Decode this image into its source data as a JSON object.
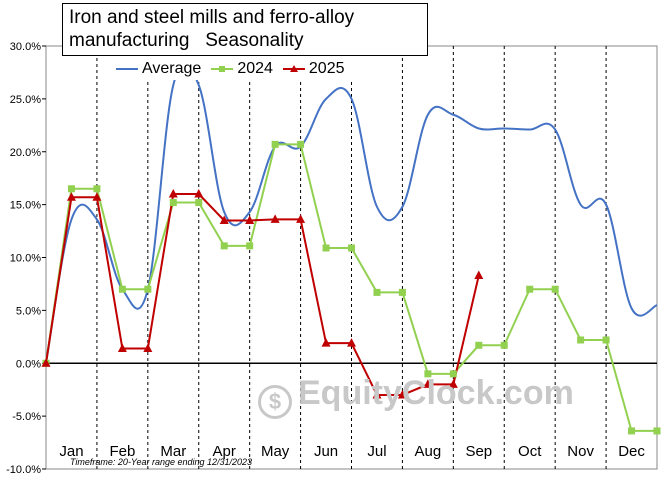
{
  "chart_data": {
    "type": "line",
    "title_line1": "Iron and steel mills and ferro-alloy",
    "title_line2": "manufacturing   Seasonality",
    "categories": [
      "Jan",
      "Feb",
      "Mar",
      "Apr",
      "May",
      "Jun",
      "Jul",
      "Aug",
      "Sep",
      "Oct",
      "Nov",
      "Dec"
    ],
    "yticks": [
      "30.0%",
      "25.0%",
      "20.0%",
      "15.0%",
      "10.0%",
      "5.0%",
      "0.0%",
      "-5.0%",
      "-10.0%"
    ],
    "ylim": [
      -10,
      30
    ],
    "xlim": [
      0,
      12
    ],
    "grid": "dashed vertical month boundaries",
    "legend_position": "top",
    "series": [
      {
        "name": "Average",
        "color": "#4472c4",
        "marker": "none",
        "smooth": true,
        "points": [
          [
            0,
            0
          ],
          [
            0.5,
            13.6
          ],
          [
            1,
            13.6
          ],
          [
            1.5,
            7
          ],
          [
            2,
            7
          ],
          [
            2.5,
            26.3
          ],
          [
            3,
            26.3
          ],
          [
            3.5,
            14.3
          ],
          [
            4,
            14.3
          ],
          [
            4.5,
            20.5
          ],
          [
            5,
            20.5
          ],
          [
            5.5,
            25
          ],
          [
            6,
            25
          ],
          [
            6.5,
            14.8
          ],
          [
            7,
            14.8
          ],
          [
            7.5,
            23.5
          ],
          [
            8,
            23.5
          ],
          [
            8.5,
            22.2
          ],
          [
            9,
            22.2
          ],
          [
            9.5,
            22.1
          ],
          [
            10,
            22.1
          ],
          [
            10.5,
            15
          ],
          [
            11,
            15
          ],
          [
            11.5,
            5.2
          ],
          [
            12,
            5.5
          ]
        ]
      },
      {
        "name": "2024",
        "color": "#92d050",
        "marker": "square",
        "smooth": false,
        "points": [
          [
            0,
            0
          ],
          [
            0.5,
            16.5
          ],
          [
            1,
            16.5
          ],
          [
            1.5,
            7
          ],
          [
            2,
            7
          ],
          [
            2.5,
            15.2
          ],
          [
            3,
            15.2
          ],
          [
            3.5,
            11.1
          ],
          [
            4,
            11.1
          ],
          [
            4.5,
            20.7
          ],
          [
            5,
            20.7
          ],
          [
            5.5,
            10.9
          ],
          [
            6,
            10.9
          ],
          [
            6.5,
            6.7
          ],
          [
            7,
            6.7
          ],
          [
            7.5,
            -1
          ],
          [
            8,
            -1
          ],
          [
            8.5,
            1.7
          ],
          [
            9,
            1.7
          ],
          [
            9.5,
            7
          ],
          [
            10,
            7
          ],
          [
            10.5,
            2.2
          ],
          [
            11,
            2.2
          ],
          [
            11.5,
            -6.4
          ],
          [
            12,
            -6.4
          ]
        ]
      },
      {
        "name": "2025",
        "color": "#c00000",
        "marker": "triangle",
        "smooth": false,
        "points": [
          [
            0,
            0
          ],
          [
            0.5,
            15.7
          ],
          [
            1,
            15.7
          ],
          [
            1.5,
            1.4
          ],
          [
            2,
            1.4
          ],
          [
            2.5,
            16
          ],
          [
            3,
            16
          ],
          [
            3.5,
            13.5
          ],
          [
            4,
            13.5
          ],
          [
            4.5,
            13.6
          ],
          [
            5,
            13.6
          ],
          [
            5.5,
            1.9
          ],
          [
            6,
            1.9
          ],
          [
            6.5,
            -3
          ],
          [
            7,
            -3
          ],
          [
            7.5,
            -2
          ],
          [
            8,
            -2
          ],
          [
            8.5,
            8.3
          ]
        ]
      }
    ]
  },
  "footnote": "Timeframe: 20-Year range ending 12/31/2023",
  "watermark": "EquityClock.com"
}
